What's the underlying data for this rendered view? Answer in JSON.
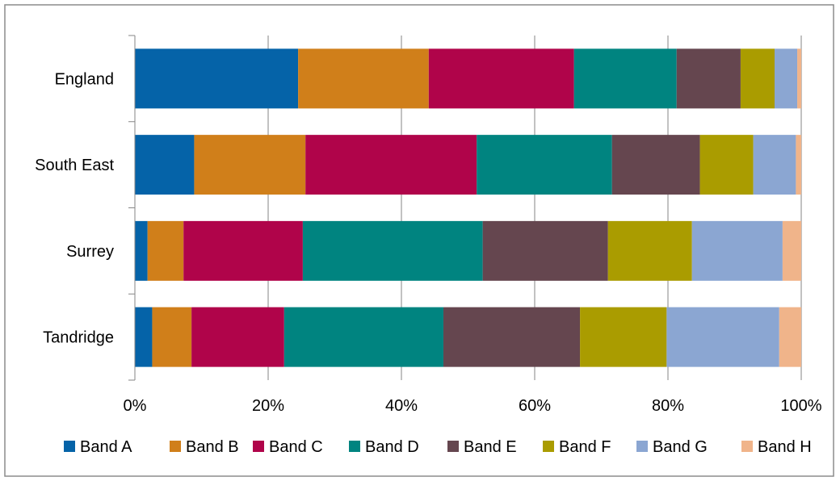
{
  "chart_data": {
    "type": "bar",
    "orientation": "horizontal",
    "stacked": "percent",
    "categories": [
      "England",
      "South East",
      "Surrey",
      "Tandridge"
    ],
    "series": [
      {
        "name": "Band A",
        "color": "#0563A8",
        "values": [
          24.5,
          8.9,
          1.9,
          2.6
        ]
      },
      {
        "name": "Band B",
        "color": "#D07F1A",
        "values": [
          19.6,
          16.7,
          5.4,
          5.9
        ]
      },
      {
        "name": "Band C",
        "color": "#B0044A",
        "values": [
          21.8,
          25.7,
          17.9,
          13.9
        ]
      },
      {
        "name": "Band D",
        "color": "#008480",
        "values": [
          15.4,
          20.3,
          27.0,
          23.9
        ]
      },
      {
        "name": "Band E",
        "color": "#65464F",
        "values": [
          9.6,
          13.2,
          18.8,
          20.5
        ]
      },
      {
        "name": "Band F",
        "color": "#AA9C00",
        "values": [
          5.1,
          8.0,
          12.6,
          13.0
        ]
      },
      {
        "name": "Band G",
        "color": "#8BA6D2",
        "values": [
          3.4,
          6.4,
          13.6,
          16.9
        ]
      },
      {
        "name": "Band H",
        "color": "#F0B48A",
        "values": [
          0.6,
          0.8,
          2.8,
          3.3
        ]
      }
    ],
    "x_ticks": [
      "0%",
      "20%",
      "40%",
      "60%",
      "80%",
      "100%"
    ],
    "xlim": [
      0,
      100
    ],
    "grid": "vertical",
    "grid_color": "#868686",
    "legend": "bottom"
  }
}
